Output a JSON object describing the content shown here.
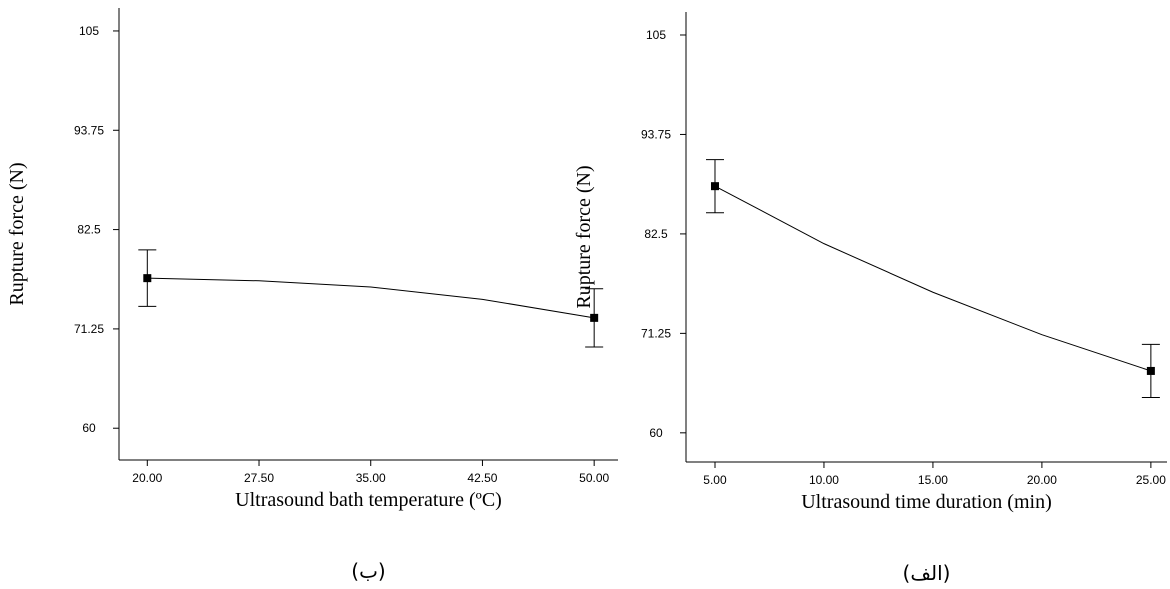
{
  "chart_data": [
    {
      "type": "line",
      "y_label": "Rupture force (N)",
      "x_label": "Ultrasound bath temperature (ºC)",
      "caption": "(ب)",
      "color": "#000000",
      "xlim": [
        18.1,
        51.6
      ],
      "ylim": [
        56.4,
        107.6
      ],
      "xticks": [
        {
          "value": 20,
          "label": "20.00"
        },
        {
          "value": 27.5,
          "label": "27.50"
        },
        {
          "value": 35,
          "label": "35.00"
        },
        {
          "value": 42.5,
          "label": "42.50"
        },
        {
          "value": 50,
          "label": "50.00"
        }
      ],
      "yticks": [
        60,
        71.25,
        82.5,
        93.75,
        105
      ],
      "points": {
        "x": [
          20,
          50
        ],
        "values": [
          77,
          72.5
        ],
        "errors": [
          3.2,
          3.3
        ]
      },
      "fit": {
        "x": [
          20,
          27.5,
          35,
          42.5,
          50
        ],
        "values": [
          77,
          76.7,
          76,
          74.6,
          72.5
        ]
      }
    },
    {
      "type": "line",
      "y_label": "Rupture force (N)",
      "x_label": "Ultrasound time duration (min)",
      "caption": "(الف)",
      "color": "#000000",
      "xlim": [
        3.67,
        25.74
      ],
      "ylim": [
        56.7,
        107.6
      ],
      "xticks": [
        {
          "value": 5,
          "label": "5.00"
        },
        {
          "value": 10,
          "label": "10.00"
        },
        {
          "value": 15,
          "label": "15.00"
        },
        {
          "value": 20,
          "label": "20.00"
        },
        {
          "value": 25,
          "label": "25.00"
        }
      ],
      "yticks": [
        60,
        71.25,
        82.5,
        93.75,
        105
      ],
      "points": {
        "x": [
          5,
          25
        ],
        "values": [
          87.9,
          67
        ],
        "errors": [
          3,
          3
        ]
      },
      "fit": {
        "x": [
          5,
          10,
          15,
          20,
          25
        ],
        "values": [
          87.9,
          81.4,
          75.9,
          71.1,
          67
        ]
      }
    }
  ]
}
